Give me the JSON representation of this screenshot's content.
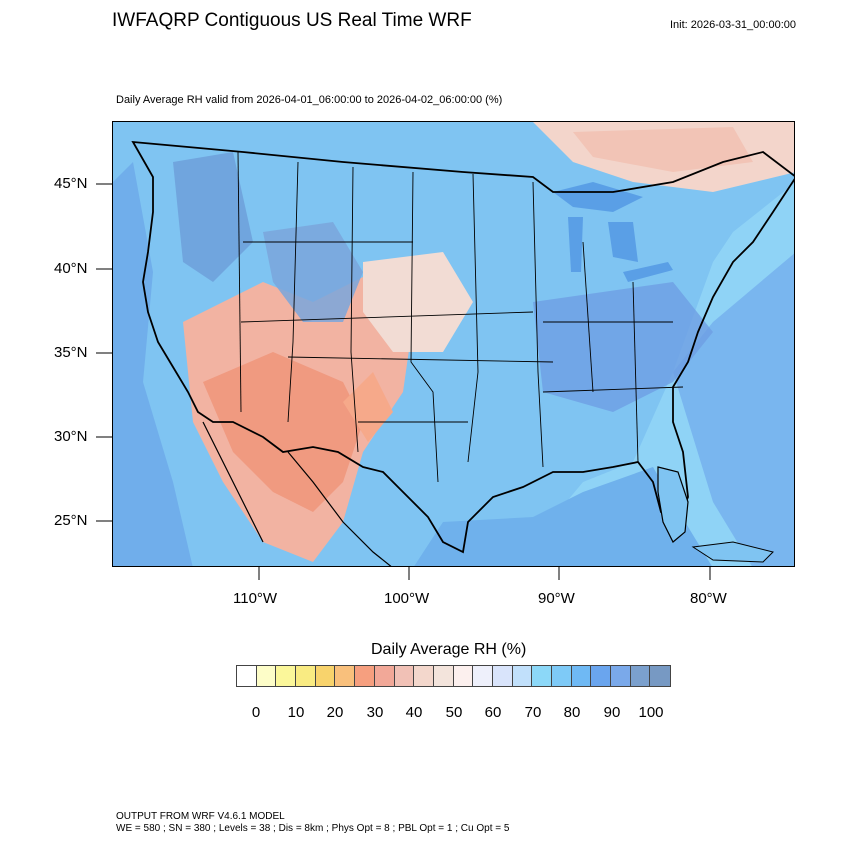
{
  "title": "IWFAQRP Contiguous US Real Time WRF",
  "init": "Init: 2026-03-31_00:00:00",
  "subtitle": "Daily Average RH valid from 2026-04-01_06:00:00 to 2026-04-02_06:00:00   (%)",
  "lat_labels": [
    "45°N",
    "40°N",
    "35°N",
    "30°N",
    "25°N"
  ],
  "lon_labels": [
    "110°W",
    "100°W",
    "90°W",
    "80°W"
  ],
  "colorbar": {
    "title": "Daily Average RH  (%)",
    "labels": [
      "0",
      "10",
      "20",
      "30",
      "40",
      "50",
      "60",
      "70",
      "80",
      "90",
      "100"
    ],
    "colors": [
      "#ffffff",
      "#fdfdc8",
      "#fbf79a",
      "#f9eb82",
      "#f8d36c",
      "#f9c07c",
      "#f69f7f",
      "#f2a898",
      "#f1c1b6",
      "#f3d7cc",
      "#f3e4dc",
      "#fcf0ee",
      "#eef0fb",
      "#d9e4fb",
      "#c1e0fb",
      "#8cd8f8",
      "#7ecaf7",
      "#6fb9f4",
      "#6aa5ee",
      "#7aa9ea",
      "#7ba0cd",
      "#7799c3"
    ]
  },
  "footer": {
    "line1": "OUTPUT FROM WRF V4.6.1 MODEL",
    "line2": "WE = 580 ; SN = 380 ; Levels = 38 ; Dis = 8km ; Phys Opt = 8 ; PBL Opt = 1 ; Cu Opt = 5"
  }
}
